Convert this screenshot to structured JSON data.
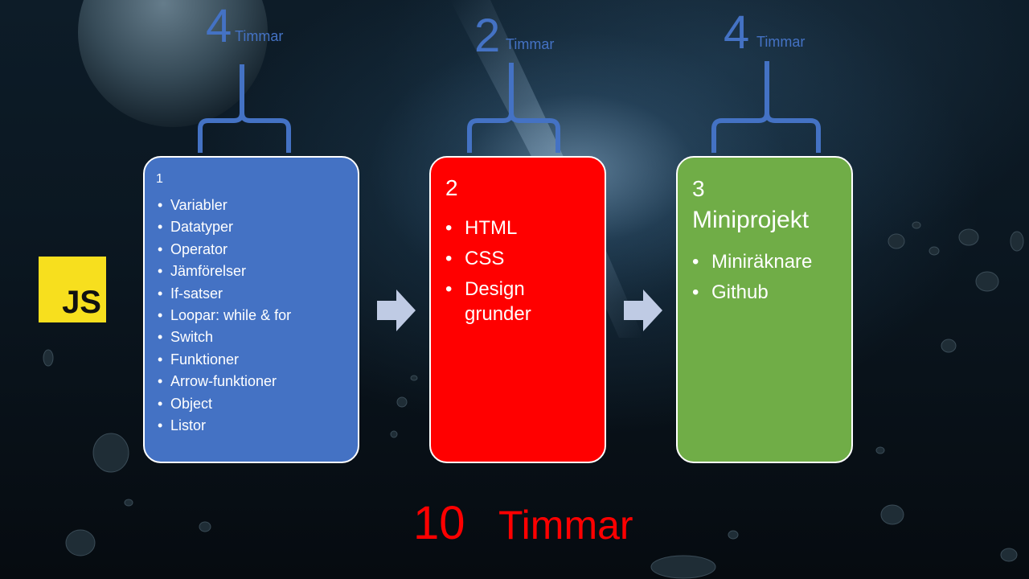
{
  "slide": {
    "logo": {
      "text": "JS",
      "color": "#f7df1e"
    },
    "phases": [
      {
        "number": "1",
        "hours": "4",
        "hours_unit": "Timmar",
        "color": "#4472c4",
        "items": [
          "Variabler",
          "Datatyper",
          "Operator",
          "Jämförelser",
          "If-satser",
          "Loopar: while & for",
          "Switch",
          "Funktioner",
          "Arrow-funktioner",
          "Object",
          "Listor"
        ]
      },
      {
        "number": "2",
        "hours": "2",
        "hours_unit": "Timmar",
        "color": "#ff0000",
        "items": [
          "HTML",
          "CSS",
          "Design grunder"
        ]
      },
      {
        "number": "3",
        "title": "Miniprojekt",
        "hours": "4",
        "hours_unit": "Timmar",
        "color": "#70ad47",
        "items": [
          "Miniräknare",
          "Github"
        ]
      }
    ],
    "total": {
      "value": "10",
      "unit": "Timmar",
      "color": "#ff0000"
    },
    "icons": [
      "right-arrow-icon",
      "right-arrow-icon",
      "curly-brace-icon"
    ]
  }
}
